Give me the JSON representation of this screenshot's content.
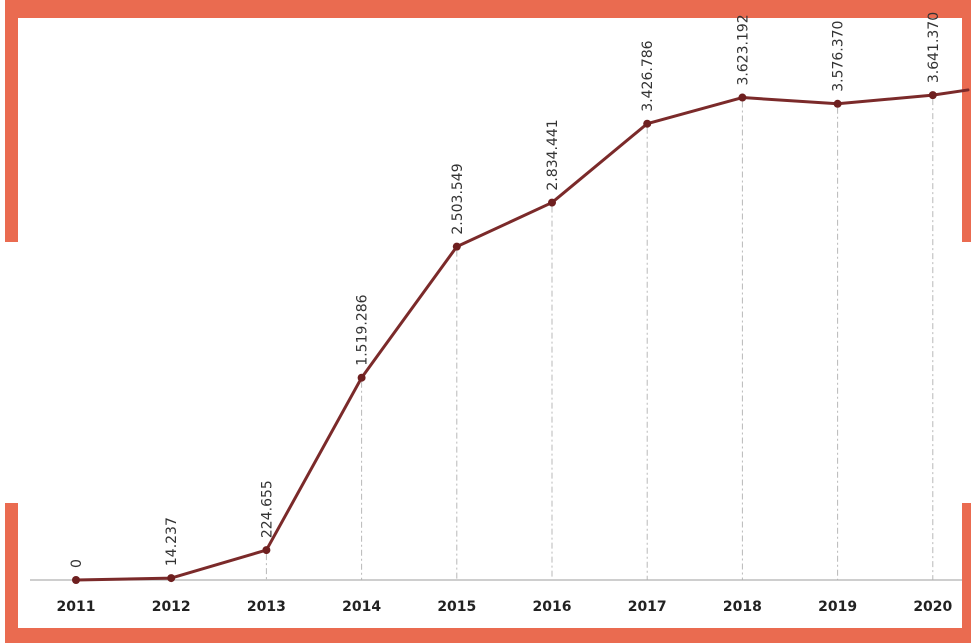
{
  "chart_data": {
    "type": "line",
    "categories": [
      "2011",
      "2012",
      "2013",
      "2014",
      "2015",
      "2016",
      "2017",
      "2018",
      "2019",
      "2020"
    ],
    "values": [
      0,
      14237,
      224655,
      1519286,
      2503549,
      2834441,
      3426786,
      3623192,
      3576370,
      3641370
    ],
    "value_labels": [
      "0",
      "14.237",
      "224.655",
      "1.519.286",
      "2.503.549",
      "2.834.441",
      "3.426.786",
      "3.623.192",
      "3.576.370",
      "3.641.370"
    ],
    "title": "",
    "xlabel": "",
    "ylabel": "",
    "ylim": [
      0,
      3800000
    ],
    "grid": "dashed vertical drop lines at each point",
    "legend": "none",
    "line_extends_past_last_point": true,
    "colors": {
      "line": "#7b2a2a",
      "marker": "#6e1f1f",
      "frame": "#ea6b50",
      "dropline": "#b8b8b8",
      "axis": "#b0b0b0"
    }
  }
}
